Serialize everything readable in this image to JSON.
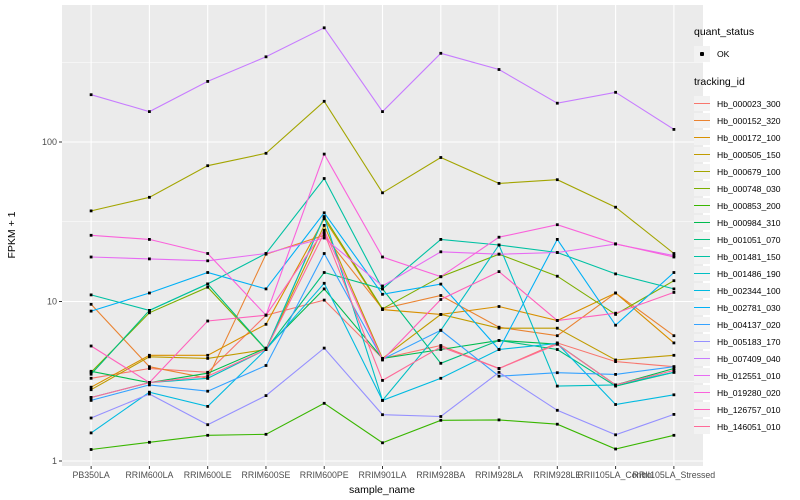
{
  "figure": {
    "background": "#FFFFFF",
    "panel_background": "#EBEBEB",
    "grid_color": "#FFFFFF",
    "tick_label_color": "#4D4D4D",
    "axis_title_color": "#000000",
    "legend_key_background": "#F2F2F2",
    "point_color": "#000000"
  },
  "legend": {
    "quant_status_title": "quant_status",
    "quant_status_items": [
      {
        "label": "OK",
        "symbol": "black-point"
      }
    ],
    "tracking_id_title": "tracking_id"
  },
  "chart_data": {
    "type": "line",
    "title": "",
    "xlabel": "sample_name",
    "ylabel": "FPKM + 1",
    "y_scale": "log10",
    "y_ticks": [
      1,
      10,
      100
    ],
    "y_minor_breaks": [
      3.162,
      31.62,
      316.2
    ],
    "ylim": [
      0.9,
      700
    ],
    "grid": true,
    "legend_position": "right",
    "point_marker": "small-black-square",
    "categories": [
      "PB350LA",
      "RRIM600LA",
      "RRIM600LE",
      "RRIM600SE",
      "RRIM600PE",
      "RRIM901LA",
      "RRIM928BA",
      "RRIM928LA",
      "RRIM928LE",
      "RRII105LA_Control",
      "RRII105LA_Stressed"
    ],
    "series": [
      {
        "name": "Hb_000023_300",
        "color": "#F8766D",
        "values": [
          3.3,
          3.8,
          3.6,
          8.2,
          10.2,
          4.4,
          5.3,
          3.8,
          5.5,
          4.2,
          3.9
        ]
      },
      {
        "name": "Hb_000152_320",
        "color": "#EA8331",
        "values": [
          9.6,
          3.9,
          3.3,
          19.8,
          26,
          9.0,
          10.9,
          6.9,
          6.1,
          11.3,
          6.1
        ]
      },
      {
        "name": "Hb_000172_100",
        "color": "#D89000",
        "values": [
          2.9,
          4.6,
          4.6,
          7.2,
          33,
          8.9,
          8.3,
          9.3,
          7.6,
          11.3,
          5.5
        ]
      },
      {
        "name": "Hb_000505_150",
        "color": "#C09B00",
        "values": [
          2.8,
          4.5,
          4.4,
          5.0,
          30,
          4.4,
          8.3,
          6.8,
          6.8,
          4.3,
          4.6
        ]
      },
      {
        "name": "Hb_000679_100",
        "color": "#A3A500",
        "values": [
          37,
          45,
          71,
          85,
          180,
          48,
          80,
          55,
          58,
          39,
          20
        ]
      },
      {
        "name": "Hb_000748_030",
        "color": "#7CAE00",
        "values": [
          3.6,
          8.5,
          12.3,
          5.0,
          34,
          9.0,
          14.3,
          19.8,
          14.4,
          8.3,
          13.5
        ]
      },
      {
        "name": "Hb_000853_200",
        "color": "#39B600",
        "values": [
          1.18,
          1.31,
          1.45,
          1.47,
          2.3,
          1.3,
          1.8,
          1.81,
          1.7,
          1.19,
          1.45
        ]
      },
      {
        "name": "Hb_000984_310",
        "color": "#00BB4E",
        "values": [
          3.65,
          3.1,
          3.55,
          5.1,
          12,
          4.4,
          5.0,
          5.7,
          5.4,
          3.0,
          3.8
        ]
      },
      {
        "name": "Hb_001051_070",
        "color": "#00BF7D",
        "values": [
          3.5,
          8.8,
          12.9,
          5.0,
          15.2,
          12,
          4.1,
          5.7,
          5.0,
          2.95,
          3.6
        ]
      },
      {
        "name": "Hb_001481_150",
        "color": "#00C1A3",
        "values": [
          11,
          8.8,
          12.9,
          20,
          59,
          12,
          24.5,
          22.6,
          20.3,
          14.9,
          12
        ]
      },
      {
        "name": "Hb_001486_190",
        "color": "#00BFC4",
        "values": [
          2.5,
          3.1,
          3.3,
          5.0,
          34,
          2.4,
          6.6,
          22.6,
          2.95,
          3.0,
          3.6
        ]
      },
      {
        "name": "Hb_002344_100",
        "color": "#00BAE0",
        "values": [
          1.5,
          2.7,
          2.2,
          5.0,
          13,
          2.4,
          3.3,
          5.0,
          5.45,
          2.26,
          2.6
        ]
      },
      {
        "name": "Hb_002781_030",
        "color": "#00B0F6",
        "values": [
          8.7,
          11.3,
          15.2,
          12,
          36,
          11.1,
          12.85,
          5.0,
          24.5,
          7.1,
          15.2
        ]
      },
      {
        "name": "Hb_004137_020",
        "color": "#35A2FF",
        "values": [
          2.4,
          3.0,
          2.74,
          3.97,
          20,
          4.35,
          6.6,
          3.4,
          3.58,
          3.49,
          3.9
        ]
      },
      {
        "name": "Hb_005183_170",
        "color": "#9590FF",
        "values": [
          1.86,
          2.63,
          1.69,
          2.57,
          5.1,
          1.95,
          1.9,
          3.6,
          2.08,
          1.46,
          1.96
        ]
      },
      {
        "name": "Hb_007409_040",
        "color": "#C77CFF",
        "values": [
          198,
          155,
          240,
          342,
          520,
          155,
          360,
          285,
          175,
          205,
          120
        ]
      },
      {
        "name": "Hb_012551_010",
        "color": "#E76BF3",
        "values": [
          19,
          18.5,
          18,
          20,
          25,
          12.5,
          20.5,
          19.8,
          20.3,
          22.9,
          19.4
        ]
      },
      {
        "name": "Hb_019280_020",
        "color": "#FA62DB",
        "values": [
          26,
          24.5,
          20,
          8.2,
          84,
          19,
          14.3,
          25.3,
          30.3,
          23,
          19
        ]
      },
      {
        "name": "Hb_126757_010",
        "color": "#FF62BC",
        "values": [
          5.26,
          3.1,
          7.55,
          8.2,
          28,
          4.3,
          10.3,
          15.4,
          7.6,
          8.45,
          11.4
        ]
      },
      {
        "name": "Hb_146051_010",
        "color": "#FF6A98",
        "values": [
          2.5,
          3.1,
          3.4,
          5.0,
          27,
          3.2,
          5.2,
          3.8,
          5.4,
          3.0,
          3.7
        ]
      }
    ]
  }
}
